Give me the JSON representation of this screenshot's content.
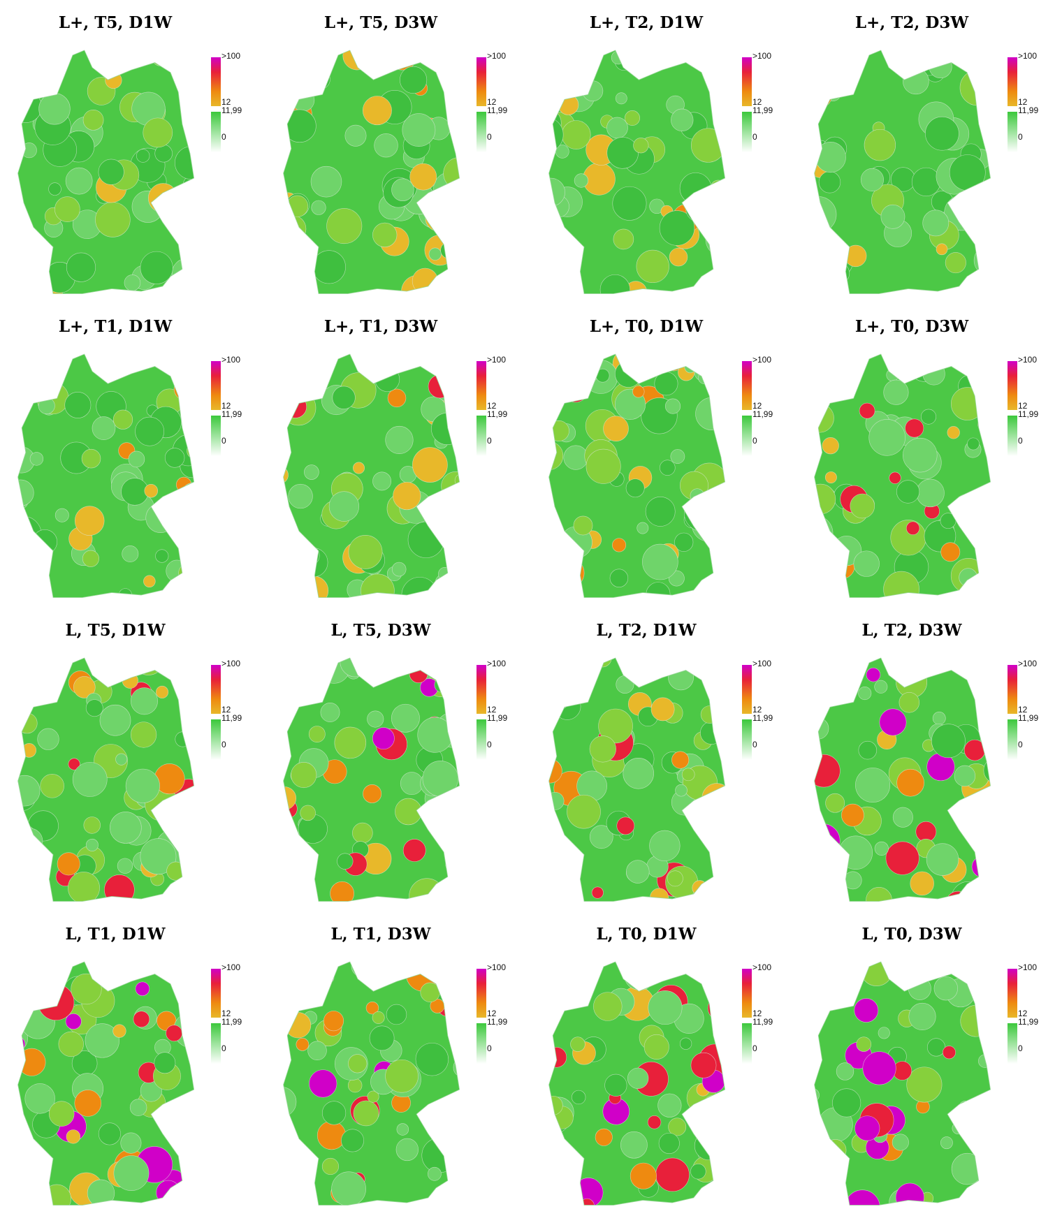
{
  "panels": [
    {
      "title": "L+, T5, D1W"
    },
    {
      "title": "L+, T5, D3W"
    },
    {
      "title": "L+, T2, D1W"
    },
    {
      "title": "L+, T2, D3W"
    },
    {
      "title": "L+, T1, D1W"
    },
    {
      "title": "L+, T1, D3W"
    },
    {
      "title": "L+, T0, D1W"
    },
    {
      "title": "L+, T0, D3W"
    },
    {
      "title": "L, T5, D1W"
    },
    {
      "title": "L, T5, D3W"
    },
    {
      "title": "L, T2, D1W"
    },
    {
      "title": "L, T2, D3W"
    },
    {
      "title": "L, T1, D1W"
    },
    {
      "title": "L, T1, D3W"
    },
    {
      "title": "L, T0, D1W"
    },
    {
      "title": "L, T0, D3W"
    }
  ],
  "legend": {
    "labels": [
      ">100",
      "12",
      "11,99",
      "0"
    ]
  }
}
